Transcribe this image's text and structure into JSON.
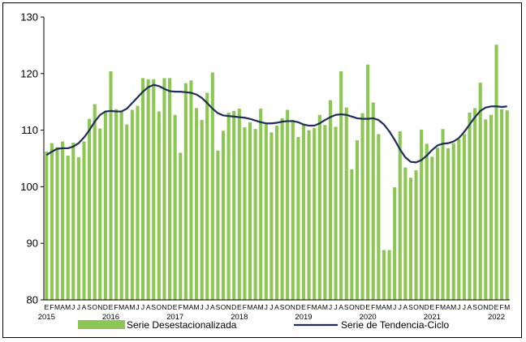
{
  "chart_data": {
    "type": "bar",
    "title": "",
    "xlabel": "",
    "ylabel": "",
    "ylim": [
      80,
      130
    ],
    "yticks": [
      80,
      90,
      100,
      110,
      120,
      130
    ],
    "grid": false,
    "legend_position": "bottom",
    "colors": {
      "bars": "#8cc653",
      "line": "#1f2d5a"
    },
    "month_letters": [
      "E",
      "F",
      "M",
      "A",
      "M",
      "J",
      "J",
      "A",
      "S",
      "O",
      "N",
      "D"
    ],
    "year_labels": [
      "2015",
      "2016",
      "2017",
      "2018",
      "2019",
      "2020",
      "2021",
      "2022"
    ],
    "categories": [
      "2015-01",
      "2015-02",
      "2015-03",
      "2015-04",
      "2015-05",
      "2015-06",
      "2015-07",
      "2015-08",
      "2015-09",
      "2015-10",
      "2015-11",
      "2015-12",
      "2016-01",
      "2016-02",
      "2016-03",
      "2016-04",
      "2016-05",
      "2016-06",
      "2016-07",
      "2016-08",
      "2016-09",
      "2016-10",
      "2016-11",
      "2016-12",
      "2017-01",
      "2017-02",
      "2017-03",
      "2017-04",
      "2017-05",
      "2017-06",
      "2017-07",
      "2017-08",
      "2017-09",
      "2017-10",
      "2017-11",
      "2017-12",
      "2018-01",
      "2018-02",
      "2018-03",
      "2018-04",
      "2018-05",
      "2018-06",
      "2018-07",
      "2018-08",
      "2018-09",
      "2018-10",
      "2018-11",
      "2018-12",
      "2019-01",
      "2019-02",
      "2019-03",
      "2019-04",
      "2019-05",
      "2019-06",
      "2019-07",
      "2019-08",
      "2019-09",
      "2019-10",
      "2019-11",
      "2019-12",
      "2020-01",
      "2020-02",
      "2020-03",
      "2020-04",
      "2020-05",
      "2020-06",
      "2020-07",
      "2020-08",
      "2020-09",
      "2020-10",
      "2020-11",
      "2020-12",
      "2021-01",
      "2021-02",
      "2021-03",
      "2021-04",
      "2021-05",
      "2021-06",
      "2021-07",
      "2021-08",
      "2021-09",
      "2021-10",
      "2021-11",
      "2021-12",
      "2022-01",
      "2022-02",
      "2022-03"
    ],
    "series": [
      {
        "name": "Serie Desestacionalizada",
        "kind": "bar",
        "values": [
          106.2,
          107.7,
          107.0,
          108.0,
          105.5,
          107.8,
          105.2,
          108.0,
          112.0,
          114.6,
          110.3,
          113.4,
          120.4,
          113.7,
          113.4,
          111.0,
          113.6,
          114.3,
          119.2,
          119.0,
          119.0,
          113.3,
          119.2,
          119.2,
          112.7,
          106.0,
          118.3,
          118.8,
          113.9,
          111.8,
          116.6,
          120.2,
          106.4,
          109.9,
          113.1,
          113.4,
          113.8,
          110.5,
          111.4,
          110.2,
          113.8,
          111.3,
          109.6,
          110.8,
          112.1,
          113.6,
          111.8,
          108.8,
          111.0,
          110.0,
          110.4,
          112.7,
          110.9,
          115.3,
          110.6,
          120.4,
          114.0,
          103.1,
          108.2,
          113.0,
          121.6,
          114.9,
          109.3,
          88.8,
          88.8,
          99.9,
          109.8,
          103.4,
          101.6,
          102.9,
          110.1,
          107.6,
          105.3,
          106.9,
          110.2,
          106.8,
          107.7,
          108.4,
          109.3,
          113.1,
          113.9,
          118.4,
          111.9,
          112.7,
          125.1,
          113.7,
          113.5
        ]
      },
      {
        "name": "Serie de Tendencia-Ciclo",
        "kind": "line",
        "values": [
          105.6,
          106.2,
          106.7,
          106.8,
          106.8,
          107.1,
          107.7,
          108.7,
          110.0,
          111.5,
          112.7,
          113.3,
          113.4,
          113.3,
          113.3,
          113.8,
          114.8,
          115.8,
          116.8,
          117.6,
          118.0,
          117.8,
          117.3,
          116.9,
          116.8,
          116.8,
          116.7,
          116.6,
          116.3,
          115.7,
          114.8,
          113.8,
          113.0,
          112.6,
          112.5,
          112.4,
          112.3,
          112.2,
          112.0,
          111.7,
          111.4,
          111.2,
          111.2,
          111.3,
          111.5,
          111.6,
          111.6,
          111.4,
          111.0,
          110.8,
          110.8,
          111.2,
          111.8,
          112.3,
          112.7,
          112.8,
          112.7,
          112.4,
          112.1,
          112.0,
          112.0,
          112.1,
          111.8,
          111.0,
          109.8,
          108.3,
          106.6,
          105.2,
          104.4,
          104.3,
          104.7,
          105.5,
          106.5,
          107.3,
          107.6,
          107.7,
          108.0,
          108.6,
          109.7,
          111.0,
          112.3,
          113.4,
          114.0,
          114.2,
          114.2,
          114.1,
          114.2
        ]
      }
    ]
  }
}
